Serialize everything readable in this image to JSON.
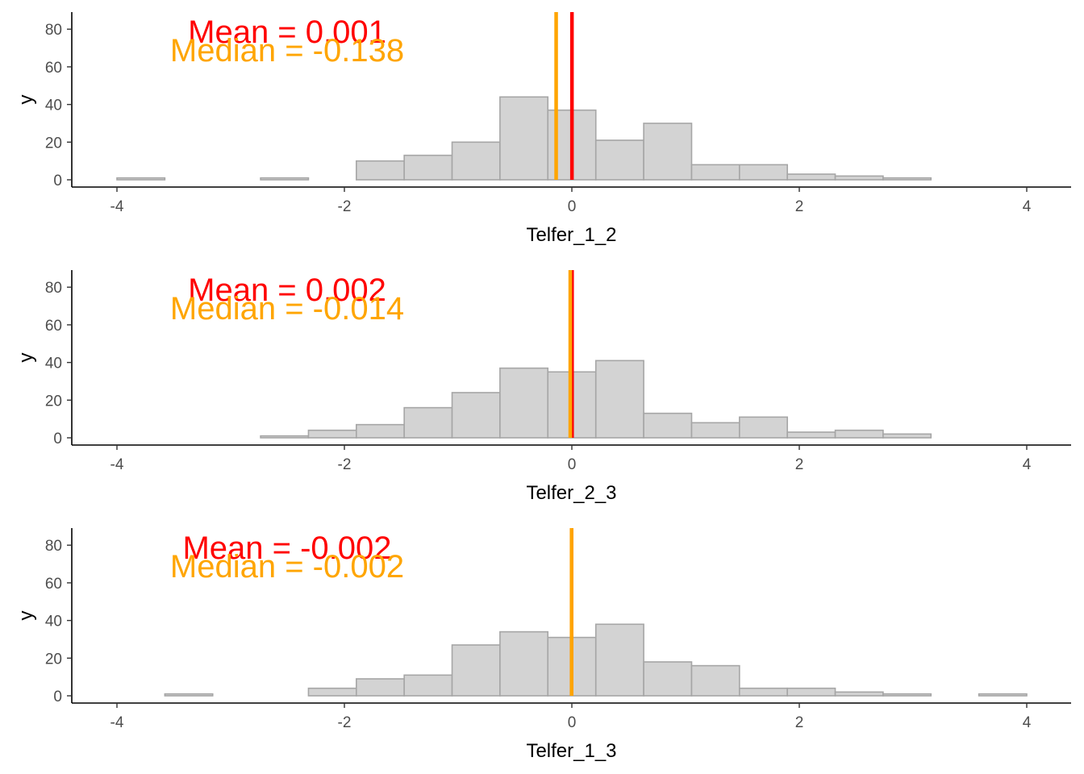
{
  "colors": {
    "mean": "#ff0000",
    "median": "#ffa500",
    "bar_fill": "#d3d3d3",
    "bar_stroke": "#a6a6a6"
  },
  "chart_data": [
    {
      "type": "bar",
      "variant": "histogram",
      "xlabel": "Telfer_1_2",
      "ylabel": "y",
      "xlim": [
        -4.2,
        4.2
      ],
      "ylim": [
        0,
        90
      ],
      "x_ticks": [
        -4,
        -2,
        0,
        2,
        4
      ],
      "y_ticks": [
        0,
        20,
        40,
        60,
        80
      ],
      "grid": false,
      "bin_edges": [
        -4.0,
        -3.579,
        -3.158,
        -2.737,
        -2.316,
        -1.895,
        -1.474,
        -1.053,
        -0.632,
        -0.211,
        0.211,
        0.632,
        1.053,
        1.474,
        1.895,
        2.316,
        2.737,
        3.158,
        3.579,
        4.0
      ],
      "counts": [
        1,
        0,
        0,
        1,
        0,
        10,
        13,
        20,
        44,
        37,
        21,
        30,
        8,
        8,
        3,
        2,
        1,
        0,
        0
      ],
      "mean": 0.001,
      "median": -0.138,
      "mean_text": "Mean = 0.001",
      "median_text": "Median = -0.138"
    },
    {
      "type": "bar",
      "variant": "histogram",
      "xlabel": "Telfer_2_3",
      "ylabel": "y",
      "xlim": [
        -4.2,
        4.2
      ],
      "ylim": [
        0,
        90
      ],
      "x_ticks": [
        -4,
        -2,
        0,
        2,
        4
      ],
      "y_ticks": [
        0,
        20,
        40,
        60,
        80
      ],
      "grid": false,
      "bin_edges": [
        -4.0,
        -3.579,
        -3.158,
        -2.737,
        -2.316,
        -1.895,
        -1.474,
        -1.053,
        -0.632,
        -0.211,
        0.211,
        0.632,
        1.053,
        1.474,
        1.895,
        2.316,
        2.737,
        3.158,
        3.579,
        4.0
      ],
      "counts": [
        0,
        0,
        0,
        1,
        4,
        7,
        16,
        24,
        37,
        35,
        41,
        13,
        8,
        11,
        3,
        4,
        2,
        0,
        0
      ],
      "mean": 0.002,
      "median": -0.014,
      "mean_text": "Mean = 0.002",
      "median_text": "Median = -0.014"
    },
    {
      "type": "bar",
      "variant": "histogram",
      "xlabel": "Telfer_1_3",
      "ylabel": "y",
      "xlim": [
        -4.2,
        4.2
      ],
      "ylim": [
        0,
        90
      ],
      "x_ticks": [
        -4,
        -2,
        0,
        2,
        4
      ],
      "y_ticks": [
        0,
        20,
        40,
        60,
        80
      ],
      "grid": false,
      "bin_edges": [
        -4.0,
        -3.579,
        -3.158,
        -2.737,
        -2.316,
        -1.895,
        -1.474,
        -1.053,
        -0.632,
        -0.211,
        0.211,
        0.632,
        1.053,
        1.474,
        1.895,
        2.316,
        2.737,
        3.158,
        3.579,
        4.0
      ],
      "counts": [
        0,
        1,
        0,
        0,
        4,
        9,
        11,
        27,
        34,
        31,
        38,
        18,
        16,
        4,
        4,
        2,
        1,
        0,
        1
      ],
      "mean": -0.002,
      "median": -0.002,
      "mean_text": "Mean = -0.002",
      "median_text": "Median = -0.002"
    }
  ]
}
